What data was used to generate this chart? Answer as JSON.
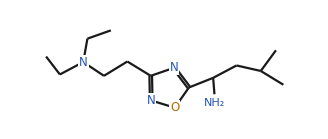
{
  "background_color": "#ffffff",
  "line_color": "#1a1a1a",
  "n_color": "#2255bb",
  "o_color": "#bb6600",
  "bond_width": 1.6,
  "font_size_atom": 8.5,
  "figsize": [
    3.28,
    1.39
  ],
  "dpi": 100,
  "xlim": [
    -5.8,
    6.2
  ],
  "ylim": [
    -2.5,
    2.8
  ]
}
